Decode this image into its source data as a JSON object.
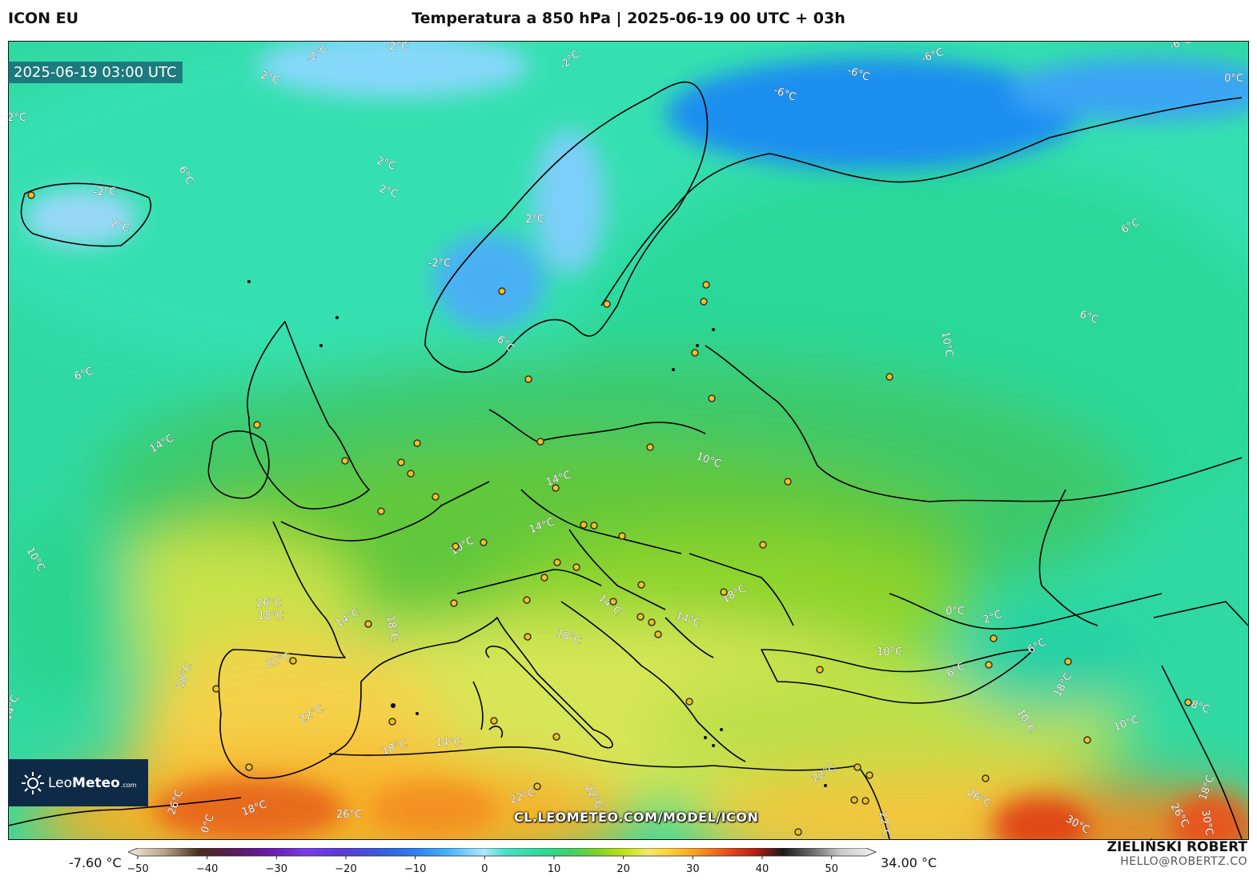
{
  "header": {
    "model": "ICON EU",
    "title": "Temperatura a 850 hPa | 2025-06-19 00 UTC + 03h"
  },
  "map": {
    "valid_time": "2025-06-19 03:00 UTC",
    "watermark": "CL.LEOMETEO.COM/MODEL/ICON",
    "isotherm_labels": [
      {
        "text": "-2°C",
        "zone": "norwegian-sea-north"
      },
      {
        "text": "-2°C",
        "zone": "barents-coast"
      },
      {
        "text": "-2°C",
        "zone": "greenland-sea"
      },
      {
        "text": "2°C",
        "zone": "arctic-north-atlantic"
      },
      {
        "text": "2°C",
        "zone": "north-atlantic-west"
      },
      {
        "text": "-2°C",
        "zone": "iceland"
      },
      {
        "text": "6°C",
        "zone": "east-of-iceland"
      },
      {
        "text": "2°C",
        "zone": "south-of-iceland"
      },
      {
        "text": "2°C",
        "zone": "norwegian-sea"
      },
      {
        "text": "2°C",
        "zone": "norwegian-sea-south"
      },
      {
        "text": "-2°C",
        "zone": "scandinavian-mountains"
      },
      {
        "text": "2°C",
        "zone": "northern-sweden"
      },
      {
        "text": "-6°C",
        "zone": "kola-peninsula"
      },
      {
        "text": "-6°C",
        "zone": "white-sea"
      },
      {
        "text": "-6°C",
        "zone": "barents-sea"
      },
      {
        "text": "-6°C",
        "zone": "novaya-zemlya"
      },
      {
        "text": "0°C",
        "zone": "arctic-east"
      },
      {
        "text": "6°C",
        "zone": "northern-russia"
      },
      {
        "text": "6°C",
        "zone": "central-russia"
      },
      {
        "text": "10°C",
        "zone": "moscow-region"
      },
      {
        "text": "6°C",
        "zone": "north-atlantic-south"
      },
      {
        "text": "6°C",
        "zone": "south-norway"
      },
      {
        "text": "14°C",
        "zone": "west-of-ireland"
      },
      {
        "text": "10°C",
        "zone": "belarus"
      },
      {
        "text": "14°C",
        "zone": "czechia"
      },
      {
        "text": "14°C",
        "zone": "austria"
      },
      {
        "text": "10°C",
        "zone": "bay-of-biscay-west"
      },
      {
        "text": "10°C",
        "zone": "alps"
      },
      {
        "text": "26°C",
        "zone": "northern-spain"
      },
      {
        "text": "18°C",
        "zone": "cantabria"
      },
      {
        "text": "14°C",
        "zone": "pyrenees"
      },
      {
        "text": "18°C",
        "zone": "gulf-of-lion"
      },
      {
        "text": "22°C",
        "zone": "central-spain"
      },
      {
        "text": "18°C",
        "zone": "portugal-coast"
      },
      {
        "text": "14°C",
        "zone": "atlantic-off-portugal"
      },
      {
        "text": "22°C",
        "zone": "southern-spain"
      },
      {
        "text": "18°C",
        "zone": "adriatic"
      },
      {
        "text": "14°C",
        "zone": "bosnia"
      },
      {
        "text": "14°C",
        "zone": "serbia"
      },
      {
        "text": "18°C",
        "zone": "romania"
      },
      {
        "text": "10°C",
        "zone": "black-sea-west"
      },
      {
        "text": "0°C",
        "zone": "caucasus-north"
      },
      {
        "text": "2°C",
        "zone": "caucasus"
      },
      {
        "text": "6°C",
        "zone": "caucasus-east"
      },
      {
        "text": "6°C",
        "zone": "armenia"
      },
      {
        "text": "18°C",
        "zone": "caspian"
      },
      {
        "text": "10°C",
        "zone": "eastern-turkey"
      },
      {
        "text": "10°C",
        "zone": "iran-north"
      },
      {
        "text": "18°C",
        "zone": "iran-northeast"
      },
      {
        "text": "18°C",
        "zone": "algeria-coast"
      },
      {
        "text": "14°C",
        "zone": "tunisia-coast"
      },
      {
        "text": "26°C",
        "zone": "morocco"
      },
      {
        "text": "18°C",
        "zone": "atlas"
      },
      {
        "text": "26°C",
        "zone": "sahara-west"
      },
      {
        "text": "22°C",
        "zone": "libya"
      },
      {
        "text": "22°C",
        "zone": "sahara-central"
      },
      {
        "text": "22°C",
        "zone": "egypt"
      },
      {
        "text": "22°C",
        "zone": "levant"
      },
      {
        "text": "26°C",
        "zone": "north-arabia"
      },
      {
        "text": "30°C",
        "zone": "iraq"
      },
      {
        "text": "26°C",
        "zone": "persian-gulf"
      },
      {
        "text": "30°C",
        "zone": "iran-south"
      },
      {
        "text": "18°C",
        "zone": "zagros"
      },
      {
        "text": "0°C",
        "zone": "canary-edge"
      }
    ]
  },
  "logo": {
    "brand_light": "Leo",
    "brand_bold": "Meteo",
    "suffix": ".com"
  },
  "colorbar": {
    "min_label": "-7.60 °C",
    "max_label": "34.00 °C",
    "ticks": [
      "−50",
      "−40",
      "−30",
      "−20",
      "−10",
      "0",
      "10",
      "20",
      "30",
      "40",
      "50"
    ],
    "tick_values": [
      -50,
      -40,
      -30,
      -20,
      -10,
      0,
      10,
      20,
      30,
      40,
      50
    ],
    "range": [
      -50,
      55
    ],
    "stops": [
      {
        "v": -50,
        "c": "#f4ecdc"
      },
      {
        "v": -45,
        "c": "#b9a58c"
      },
      {
        "v": -40,
        "c": "#4a2c1c"
      },
      {
        "v": -35,
        "c": "#5a1a5c"
      },
      {
        "v": -30,
        "c": "#6a1ab0"
      },
      {
        "v": -25,
        "c": "#7a3ce8"
      },
      {
        "v": -20,
        "c": "#5a3ad8"
      },
      {
        "v": -15,
        "c": "#3c5ae0"
      },
      {
        "v": -10,
        "c": "#2c7cf0"
      },
      {
        "v": -5,
        "c": "#4ab4fa"
      },
      {
        "v": 0,
        "c": "#aee8fc"
      },
      {
        "v": 3,
        "c": "#46e0c8"
      },
      {
        "v": 8,
        "c": "#2ed99a"
      },
      {
        "v": 12,
        "c": "#3ed06a"
      },
      {
        "v": 16,
        "c": "#7ed420"
      },
      {
        "v": 20,
        "c": "#c6e21e"
      },
      {
        "v": 23,
        "c": "#f2e86a"
      },
      {
        "v": 26,
        "c": "#fbd03a"
      },
      {
        "v": 30,
        "c": "#f89a1e"
      },
      {
        "v": 34,
        "c": "#e8501a"
      },
      {
        "v": 38,
        "c": "#b81e14"
      },
      {
        "v": 42,
        "c": "#1a1a1a"
      },
      {
        "v": 46,
        "c": "#6a6a6a"
      },
      {
        "v": 50,
        "c": "#c8c8c8"
      },
      {
        "v": 55,
        "c": "#f4f4f4"
      }
    ]
  },
  "author": {
    "name": "ZIELIŃSKI ROBERT",
    "email": "HELLO@ROBERTZ.CO"
  }
}
